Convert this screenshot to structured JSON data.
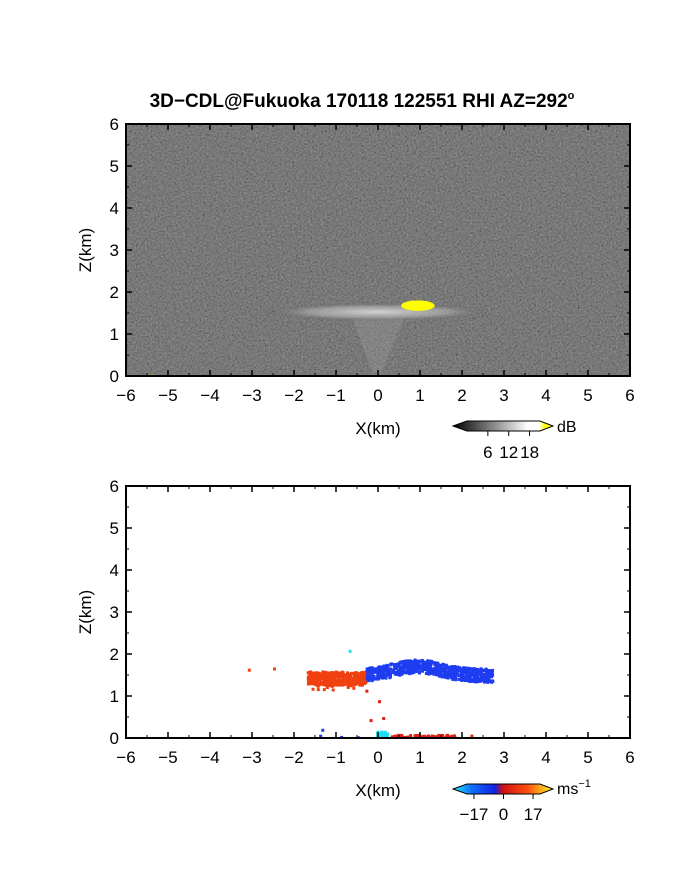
{
  "title": "3D−CDL@Fukuoka 170118 122551 RHI AZ=292",
  "title_degree": "o",
  "chart_data": [
    {
      "type": "heatmap",
      "panel": "reflectivity",
      "xlabel": "X(km)",
      "ylabel": "Z(km)",
      "xlim": [
        -6,
        6
      ],
      "ylim": [
        0,
        6
      ],
      "x_ticks": [
        "−6",
        "−5",
        "−4",
        "−3",
        "−2",
        "−1",
        "0",
        "1",
        "2",
        "3",
        "4",
        "5",
        "6"
      ],
      "y_ticks": [
        "0",
        "1",
        "2",
        "3",
        "4",
        "5",
        "6"
      ],
      "background": "noise, dark gray",
      "features": [
        {
          "kind": "layer",
          "x": [
            -2.8,
            2.8
          ],
          "z": [
            1.3,
            1.75
          ],
          "level": "light gray"
        },
        {
          "kind": "core",
          "x": [
            0.55,
            1.35
          ],
          "z": [
            1.55,
            1.8
          ],
          "color": "#ffff00"
        }
      ],
      "colorbar": {
        "ticks": [
          "6",
          "12",
          "18"
        ],
        "unit": "dB",
        "range": [
          0,
          21
        ]
      }
    },
    {
      "type": "scatter",
      "panel": "doppler velocity",
      "xlabel": "X(km)",
      "ylabel": "Z(km)",
      "xlim": [
        -6,
        6
      ],
      "ylim": [
        0,
        6
      ],
      "x_ticks": [
        "−6",
        "−5",
        "−4",
        "−3",
        "−2",
        "−1",
        "0",
        "1",
        "2",
        "3",
        "4",
        "5",
        "6"
      ],
      "y_ticks": [
        "0",
        "1",
        "2",
        "3",
        "4",
        "5",
        "6"
      ],
      "clusters": [
        {
          "name": "receding",
          "x": [
            -1.7,
            -0.3
          ],
          "z": [
            1.35,
            1.75
          ],
          "color": "#f04010"
        },
        {
          "name": "approaching",
          "x": [
            -0.3,
            2.7
          ],
          "z": [
            1.3,
            1.85
          ],
          "color": "#1e3cf0"
        },
        {
          "name": "near-surface",
          "x": [
            0.3,
            1.8
          ],
          "z": [
            0.0,
            0.15
          ],
          "color": "#e02010"
        },
        {
          "name": "zero",
          "x": [
            -0.1,
            0.2
          ],
          "z": [
            0.0,
            0.2
          ],
          "color": "#20e0f0"
        }
      ],
      "colorbar": {
        "ticks": [
          "−17",
          "0",
          "17"
        ],
        "unit": "ms",
        "unit_exp": "−1",
        "range": [
          -21,
          21
        ]
      }
    }
  ]
}
